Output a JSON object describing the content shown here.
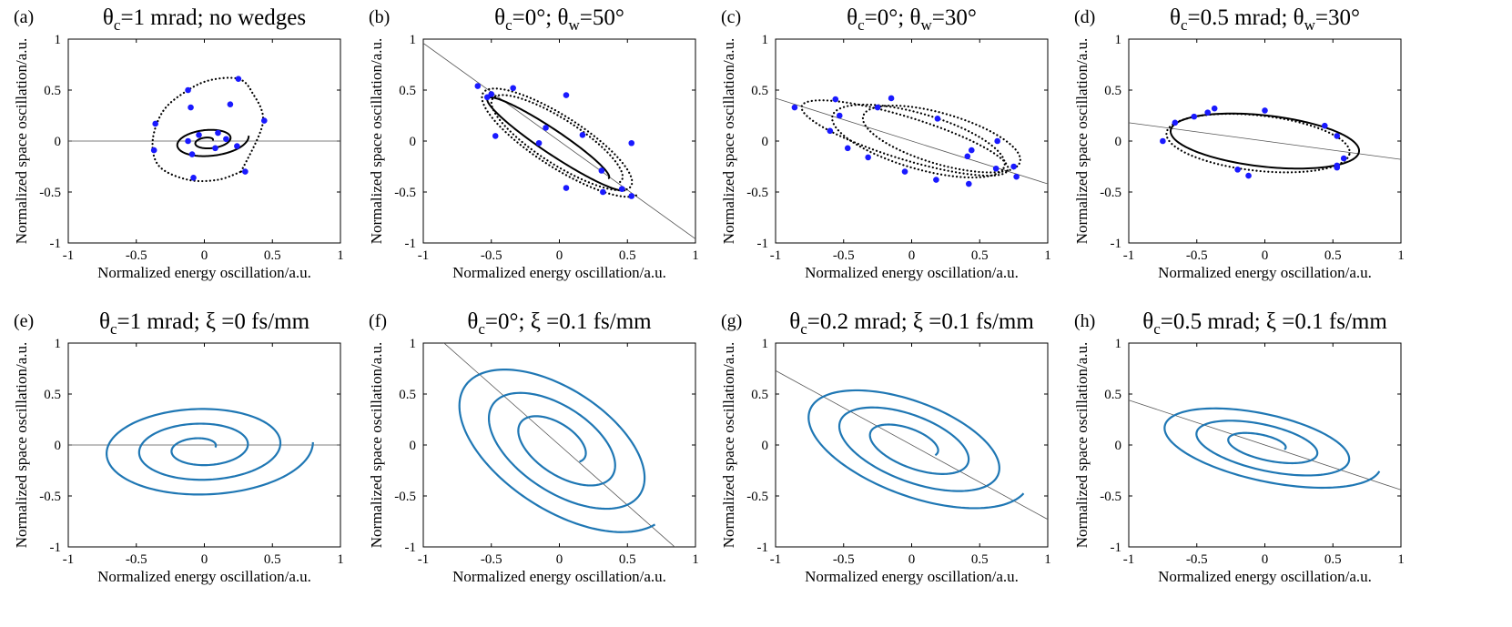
{
  "figure": {
    "rows": 2,
    "cols": 4
  },
  "chart_data": [
    {
      "type": "scatter",
      "panel": "(a)",
      "title": {
        "parts": [
          [
            "θ",
            ""
          ],
          [
            "c",
            "sub"
          ],
          [
            "=1 mrad; no wedges",
            ""
          ]
        ]
      },
      "xlabel": "Normalized energy oscillation/a.u.",
      "ylabel": "Normalized space oscillation/a.u.",
      "xlim": [
        -1,
        1
      ],
      "ylim": [
        -1,
        1
      ],
      "xticks": [
        "-1",
        "-0.5",
        "0",
        "0.5",
        "1"
      ],
      "yticks": [
        "-1",
        "-0.5",
        "0",
        "0.5",
        "1"
      ],
      "reference_line": {
        "slope": 0,
        "color": "#555555"
      },
      "curves": [
        {
          "style": "solid",
          "color": "#000000",
          "spiral": {
            "cx": 0.03,
            "cy": 0.0,
            "a0": 0.03,
            "a1": 0.3,
            "ratio": 0.55,
            "turns": 2.0,
            "tilt_deg": 10
          }
        },
        {
          "style": "dotted",
          "color": "#000000",
          "points": [
            [
              0.27,
              -0.3
            ],
            [
              0.43,
              0.18
            ],
            [
              0.35,
              0.48
            ],
            [
              0.25,
              0.61
            ],
            [
              0.05,
              0.6
            ],
            [
              -0.12,
              0.5
            ],
            [
              -0.3,
              0.3
            ],
            [
              -0.38,
              0.0
            ],
            [
              -0.33,
              -0.25
            ],
            [
              -0.12,
              -0.38
            ],
            [
              0.1,
              -0.38
            ],
            [
              0.27,
              -0.3
            ]
          ]
        }
      ],
      "markers": {
        "color": "#1a1aff",
        "points": [
          [
            -0.36,
            0.17
          ],
          [
            -0.12,
            0.5
          ],
          [
            0.25,
            0.61
          ],
          [
            -0.1,
            0.33
          ],
          [
            0.19,
            0.36
          ],
          [
            0.44,
            0.2
          ],
          [
            -0.37,
            -0.09
          ],
          [
            -0.12,
            0.0
          ],
          [
            -0.04,
            0.06
          ],
          [
            0.1,
            0.08
          ],
          [
            0.16,
            0.02
          ],
          [
            0.24,
            -0.05
          ],
          [
            0.08,
            -0.07
          ],
          [
            -0.09,
            -0.13
          ],
          [
            0.3,
            -0.3
          ],
          [
            -0.08,
            -0.36
          ]
        ]
      }
    },
    {
      "type": "scatter",
      "panel": "(b)",
      "title": {
        "parts": [
          [
            "θ",
            ""
          ],
          [
            "c",
            "sub"
          ],
          [
            "=0°; θ",
            ""
          ],
          [
            "w",
            "sub"
          ],
          [
            "=50°",
            ""
          ]
        ]
      },
      "xlabel": "Normalized energy oscillation/a.u.",
      "ylabel": "Normalized space oscillation/a.u.",
      "xlim": [
        -1,
        1
      ],
      "ylim": [
        -1,
        1
      ],
      "xticks": [
        "-1",
        "-0.5",
        "0",
        "0.5",
        "1"
      ],
      "yticks": [
        "-1",
        "-0.5",
        "0",
        "0.5",
        "1"
      ],
      "reference_line": {
        "slope": -0.96,
        "color": "#555555"
      },
      "curves": [
        {
          "style": "solid",
          "color": "#000000",
          "spiral": {
            "cx": -0.05,
            "cy": 0.0,
            "a0": 0.55,
            "a1": 0.72,
            "ratio": 0.16,
            "turns": 1.0,
            "tilt_deg": -42
          }
        },
        {
          "style": "dotted",
          "color": "#000000",
          "spiral": {
            "cx": 0.0,
            "cy": 0.0,
            "a0": 0.6,
            "a1": 0.78,
            "ratio": 0.3,
            "turns": 2.0,
            "tilt_deg": -42
          }
        }
      ],
      "markers": {
        "color": "#1a1aff",
        "points": [
          [
            -0.6,
            0.54
          ],
          [
            -0.53,
            0.43
          ],
          [
            -0.5,
            0.46
          ],
          [
            -0.34,
            0.52
          ],
          [
            -0.47,
            0.05
          ],
          [
            0.05,
            0.45
          ],
          [
            -0.1,
            0.13
          ],
          [
            -0.15,
            -0.02
          ],
          [
            0.17,
            0.06
          ],
          [
            0.31,
            -0.29
          ],
          [
            0.05,
            -0.46
          ],
          [
            0.32,
            -0.5
          ],
          [
            0.46,
            -0.47
          ],
          [
            0.53,
            -0.02
          ],
          [
            0.53,
            -0.54
          ]
        ]
      }
    },
    {
      "type": "scatter",
      "panel": "(c)",
      "title": {
        "parts": [
          [
            "θ",
            ""
          ],
          [
            "c",
            "sub"
          ],
          [
            "=0°; θ",
            ""
          ],
          [
            "w",
            "sub"
          ],
          [
            "=30°",
            ""
          ]
        ]
      },
      "xlabel": "Normalized energy oscillation/a.u.",
      "ylabel": "Normalized space oscillation/a.u.",
      "xlim": [
        -1,
        1
      ],
      "ylim": [
        -1,
        1
      ],
      "xticks": [
        "-1",
        "-0.5",
        "0",
        "0.5",
        "1"
      ],
      "yticks": [
        "-1",
        "-0.5",
        "0",
        "0.5",
        "1"
      ],
      "reference_line": {
        "slope": -0.42,
        "color": "#555555"
      },
      "curves": [
        {
          "style": "dotted",
          "color": "#000000",
          "ellipse": {
            "cx": -0.05,
            "cy": 0.03,
            "rx": 0.82,
            "ry": 0.2,
            "tilt_deg": -23
          }
        },
        {
          "style": "dotted",
          "color": "#000000",
          "ellipse": {
            "cx": 0.05,
            "cy": 0.0,
            "rx": 0.68,
            "ry": 0.26,
            "tilt_deg": -23
          }
        },
        {
          "style": "dotted",
          "color": "#000000",
          "ellipse": {
            "cx": 0.22,
            "cy": 0.02,
            "rx": 0.62,
            "ry": 0.24,
            "tilt_deg": -23
          }
        }
      ],
      "markers": {
        "color": "#1a1aff",
        "points": [
          [
            -0.86,
            0.33
          ],
          [
            -0.56,
            0.41
          ],
          [
            -0.15,
            0.42
          ],
          [
            -0.25,
            0.33
          ],
          [
            -0.53,
            0.25
          ],
          [
            -0.6,
            0.1
          ],
          [
            -0.47,
            -0.07
          ],
          [
            -0.32,
            -0.16
          ],
          [
            -0.05,
            -0.3
          ],
          [
            0.19,
            0.22
          ],
          [
            0.18,
            -0.38
          ],
          [
            0.42,
            -0.42
          ],
          [
            0.41,
            -0.15
          ],
          [
            0.44,
            -0.09
          ],
          [
            0.63,
            0.0
          ],
          [
            0.62,
            -0.27
          ],
          [
            0.75,
            -0.25
          ],
          [
            0.77,
            -0.35
          ]
        ]
      }
    },
    {
      "type": "scatter",
      "panel": "(d)",
      "title": {
        "parts": [
          [
            "θ",
            ""
          ],
          [
            "c",
            "sub"
          ],
          [
            "=0.5 mrad; θ",
            ""
          ],
          [
            "w",
            "sub"
          ],
          [
            "=30°",
            ""
          ]
        ]
      },
      "xlabel": "Normalized energy oscillation/a.u.",
      "ylabel": "Normalized space oscillation/a.u.",
      "xlim": [
        -1,
        1
      ],
      "ylim": [
        -1,
        1
      ],
      "xticks": [
        "-1",
        "-0.5",
        "0",
        "0.5",
        "1"
      ],
      "yticks": [
        "-1",
        "-0.5",
        "0",
        "0.5",
        "1"
      ],
      "reference_line": {
        "slope": -0.18,
        "color": "#555555"
      },
      "curves": [
        {
          "style": "solid",
          "color": "#000000",
          "ellipse": {
            "cx": 0.0,
            "cy": 0.0,
            "rx": 0.7,
            "ry": 0.25,
            "tilt_deg": -9
          }
        },
        {
          "style": "dotted",
          "color": "#000000",
          "ellipse": {
            "cx": -0.05,
            "cy": -0.02,
            "rx": 0.68,
            "ry": 0.27,
            "tilt_deg": -9
          }
        }
      ],
      "markers": {
        "color": "#1a1aff",
        "points": [
          [
            -0.75,
            0.0
          ],
          [
            -0.66,
            0.18
          ],
          [
            -0.52,
            0.24
          ],
          [
            -0.42,
            0.28
          ],
          [
            -0.37,
            0.32
          ],
          [
            0.0,
            0.3
          ],
          [
            0.44,
            0.15
          ],
          [
            0.53,
            0.05
          ],
          [
            0.58,
            -0.17
          ],
          [
            0.53,
            -0.26
          ],
          [
            0.53,
            -0.24
          ],
          [
            -0.2,
            -0.28
          ],
          [
            -0.12,
            -0.34
          ]
        ]
      }
    },
    {
      "type": "line",
      "panel": "(e)",
      "title": {
        "parts": [
          [
            "θ",
            ""
          ],
          [
            "c",
            "sub"
          ],
          [
            "=1 mrad; ξ =0 fs/mm",
            ""
          ]
        ]
      },
      "xlabel": "Normalized energy oscillation/a.u.",
      "ylabel": "Normalized space oscillation/a.u.",
      "xlim": [
        -1,
        1
      ],
      "ylim": [
        -1,
        1
      ],
      "xticks": [
        "-1",
        "-0.5",
        "0",
        "0.5",
        "1"
      ],
      "yticks": [
        "-1",
        "-0.5",
        "0",
        "0.5",
        "1"
      ],
      "reference_line": {
        "slope": 0,
        "color": "#555555"
      },
      "curves": [
        {
          "style": "spiral",
          "color": "#1f77b4",
          "spiral": {
            "cx": -0.02,
            "cy": -0.03,
            "a0": 0.1,
            "a1": 0.82,
            "ratio": 0.6,
            "turns": 3.0,
            "tilt_deg": 4
          }
        }
      ]
    },
    {
      "type": "line",
      "panel": "(f)",
      "title": {
        "parts": [
          [
            "θ",
            ""
          ],
          [
            "c",
            "sub"
          ],
          [
            "=0°; ξ =0.1 fs/mm",
            ""
          ]
        ]
      },
      "xlabel": "Normalized energy oscillation/a.u.",
      "ylabel": "Normalized space oscillation/a.u.",
      "xlim": [
        -1,
        1
      ],
      "ylim": [
        -1,
        1
      ],
      "xticks": [
        "-1",
        "-0.5",
        "0",
        "0.5",
        "1"
      ],
      "yticks": [
        "-1",
        "-0.5",
        "0",
        "0.5",
        "1"
      ],
      "reference_line": {
        "slope": -1.18,
        "color": "#555555"
      },
      "curves": [
        {
          "style": "spiral",
          "color": "#1f77b4",
          "spiral": {
            "cx": 0.0,
            "cy": 0.0,
            "a0": 0.22,
            "a1": 1.05,
            "ratio": 0.55,
            "turns": 3.0,
            "tilt_deg": -48
          }
        }
      ]
    },
    {
      "type": "line",
      "panel": "(g)",
      "title": {
        "parts": [
          [
            "θ",
            ""
          ],
          [
            "c",
            "sub"
          ],
          [
            "=0.2 mrad; ξ =0.1 fs/mm",
            ""
          ]
        ]
      },
      "xlabel": "Normalized energy oscillation/a.u.",
      "ylabel": "Normalized space oscillation/a.u.",
      "xlim": [
        -1,
        1
      ],
      "ylim": [
        -1,
        1
      ],
      "xticks": [
        "-1",
        "-0.5",
        "0",
        "0.5",
        "1"
      ],
      "yticks": [
        "-1",
        "-0.5",
        "0",
        "0.5",
        "1"
      ],
      "reference_line": {
        "slope": -0.73,
        "color": "#555555"
      },
      "curves": [
        {
          "style": "spiral",
          "color": "#1f77b4",
          "spiral": {
            "cx": 0.0,
            "cy": 0.0,
            "a0": 0.2,
            "a1": 0.95,
            "ratio": 0.52,
            "turns": 3.0,
            "tilt_deg": -30
          }
        }
      ]
    },
    {
      "type": "line",
      "panel": "(h)",
      "title": {
        "parts": [
          [
            "θ",
            ""
          ],
          [
            "c",
            "sub"
          ],
          [
            "=0.5 mrad; ξ =0.1 fs/mm",
            ""
          ]
        ]
      },
      "xlabel": "Normalized energy oscillation/a.u.",
      "ylabel": "Normalized space oscillation/a.u.",
      "xlim": [
        -1,
        1
      ],
      "ylim": [
        -1,
        1
      ],
      "xticks": [
        "-1",
        "-0.5",
        "0",
        "0.5",
        "1"
      ],
      "yticks": [
        "-1",
        "-0.5",
        "0",
        "0.5",
        "1"
      ],
      "reference_line": {
        "slope": -0.44,
        "color": "#555555"
      },
      "curves": [
        {
          "style": "spiral",
          "color": "#1f77b4",
          "spiral": {
            "cx": 0.0,
            "cy": 0.0,
            "a0": 0.15,
            "a1": 0.88,
            "ratio": 0.42,
            "turns": 3.0,
            "tilt_deg": -17
          }
        }
      ]
    }
  ]
}
